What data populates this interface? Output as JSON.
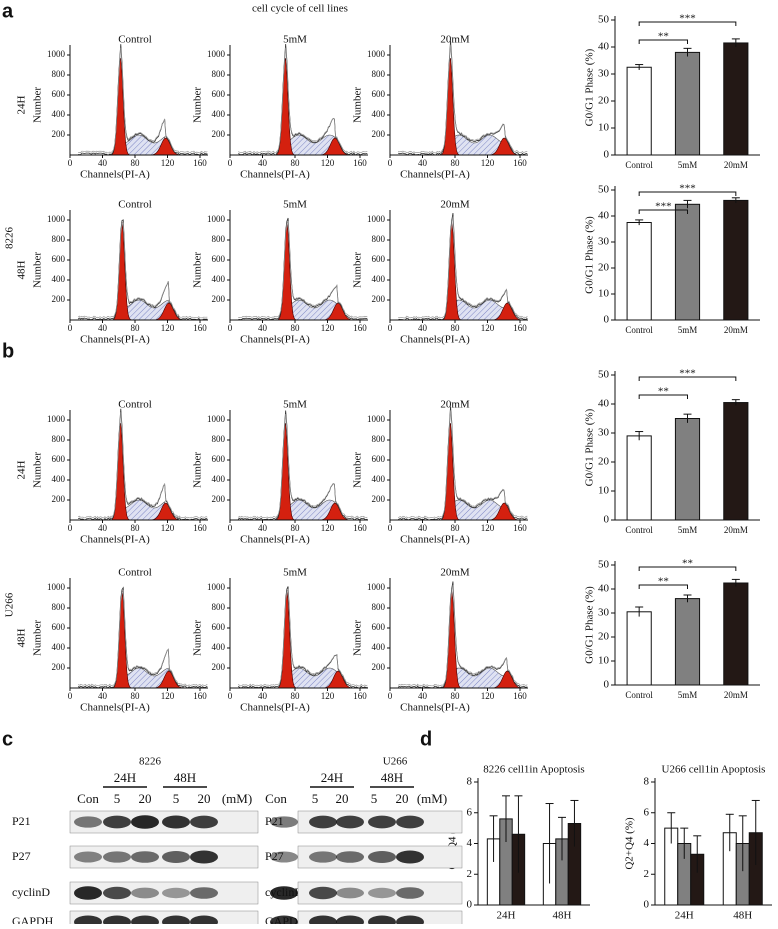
{
  "title": "cell cycle of cell lines",
  "panel_letters": [
    "a",
    "b",
    "c",
    "d"
  ],
  "flow": {
    "conditions": [
      "Control",
      "5mM",
      "20mM"
    ],
    "x_label": "Channels(PI-A)",
    "y_label": "Number",
    "xticks": [
      0,
      40,
      80,
      120,
      160
    ],
    "yticks": [
      200,
      400,
      600,
      800,
      1000
    ],
    "cell_lines": [
      "8226",
      "U266"
    ],
    "times": [
      "24H",
      "48H"
    ]
  },
  "chart_data": [
    {
      "type": "bar",
      "ylabel": "G0/G1 Phase (%)",
      "categories": [
        "Control",
        "5mM",
        "20mM"
      ],
      "values": [
        32.5,
        38,
        41.5
      ],
      "errors": [
        1,
        1.5,
        1.5
      ],
      "colors": [
        "#ffffff",
        "#808080",
        "#231815"
      ],
      "ylim": [
        0,
        50
      ],
      "yticks": [
        0,
        10,
        20,
        30,
        40,
        50
      ],
      "annotations": [
        "**",
        "***"
      ]
    },
    {
      "type": "bar",
      "ylabel": "G0/G1 Phase (%)",
      "categories": [
        "Control",
        "5mM",
        "20mM"
      ],
      "values": [
        37.5,
        44.5,
        46
      ],
      "errors": [
        1,
        1.5,
        1
      ],
      "colors": [
        "#ffffff",
        "#808080",
        "#231815"
      ],
      "ylim": [
        0,
        50
      ],
      "yticks": [
        0,
        10,
        20,
        30,
        40,
        50
      ],
      "annotations": [
        "***",
        "***"
      ]
    },
    {
      "type": "bar",
      "ylabel": "G0/G1 Phase (%)",
      "categories": [
        "Control",
        "5mM",
        "20mM"
      ],
      "values": [
        29,
        35,
        40.5
      ],
      "errors": [
        1.5,
        1.5,
        1
      ],
      "colors": [
        "#ffffff",
        "#808080",
        "#231815"
      ],
      "ylim": [
        0,
        50
      ],
      "yticks": [
        0,
        10,
        20,
        30,
        40,
        50
      ],
      "annotations": [
        "**",
        "***"
      ]
    },
    {
      "type": "bar",
      "ylabel": "G0/G1 Phase (%)",
      "categories": [
        "Control",
        "5mM",
        "20mM"
      ],
      "values": [
        30.5,
        36,
        42.5
      ],
      "errors": [
        2,
        1.5,
        1.5
      ],
      "colors": [
        "#ffffff",
        "#808080",
        "#231815"
      ],
      "ylim": [
        0,
        50
      ],
      "yticks": [
        0,
        10,
        20,
        30,
        40,
        50
      ],
      "annotations": [
        "**",
        "**"
      ]
    },
    {
      "type": "bar",
      "title": "8226 cell1in Apoptosis",
      "ylabel": "Q2+Q4 (%)",
      "categories": [
        "24H",
        "48H"
      ],
      "series": [
        {
          "color": "#ffffff",
          "values": [
            4.3,
            4.0
          ],
          "errors": [
            1.5,
            2.6
          ]
        },
        {
          "color": "#808080",
          "values": [
            5.6,
            4.3
          ],
          "errors": [
            1.5,
            1.4
          ]
        },
        {
          "color": "#231815",
          "values": [
            4.6,
            5.3
          ],
          "errors": [
            2.5,
            1.5
          ]
        }
      ],
      "ylim": [
        0,
        8
      ],
      "yticks": [
        0,
        2,
        4,
        6,
        8
      ]
    },
    {
      "type": "bar",
      "title": "U266 cell1in Apoptosis",
      "ylabel": "Q2+Q4 (%)",
      "categories": [
        "24H",
        "48H"
      ],
      "series": [
        {
          "color": "#ffffff",
          "values": [
            5.0,
            4.7
          ],
          "errors": [
            1.0,
            1.2
          ]
        },
        {
          "color": "#808080",
          "values": [
            4.0,
            4.0
          ],
          "errors": [
            1.0,
            1.8
          ]
        },
        {
          "color": "#231815",
          "values": [
            3.3,
            4.7
          ],
          "errors": [
            1.2,
            2.1
          ]
        }
      ],
      "ylim": [
        0,
        8
      ],
      "yticks": [
        0,
        2,
        4,
        6,
        8
      ]
    }
  ],
  "blots": [
    {
      "cell_line": "8226",
      "times": [
        "24H",
        "48H"
      ],
      "lanes": [
        "Con",
        "5",
        "20",
        "5",
        "20"
      ],
      "unit": "(mM)",
      "proteins": [
        "P21",
        "P27",
        "cyclinD",
        "GAPDH"
      ]
    },
    {
      "cell_line": "U266",
      "times": [
        "24H",
        "48H"
      ],
      "lanes": [
        "Con",
        "5",
        "20",
        "5",
        "20"
      ],
      "unit": "(mM)",
      "proteins": [
        "P21",
        "P27",
        "cyclinD",
        "GAPDH"
      ]
    }
  ]
}
